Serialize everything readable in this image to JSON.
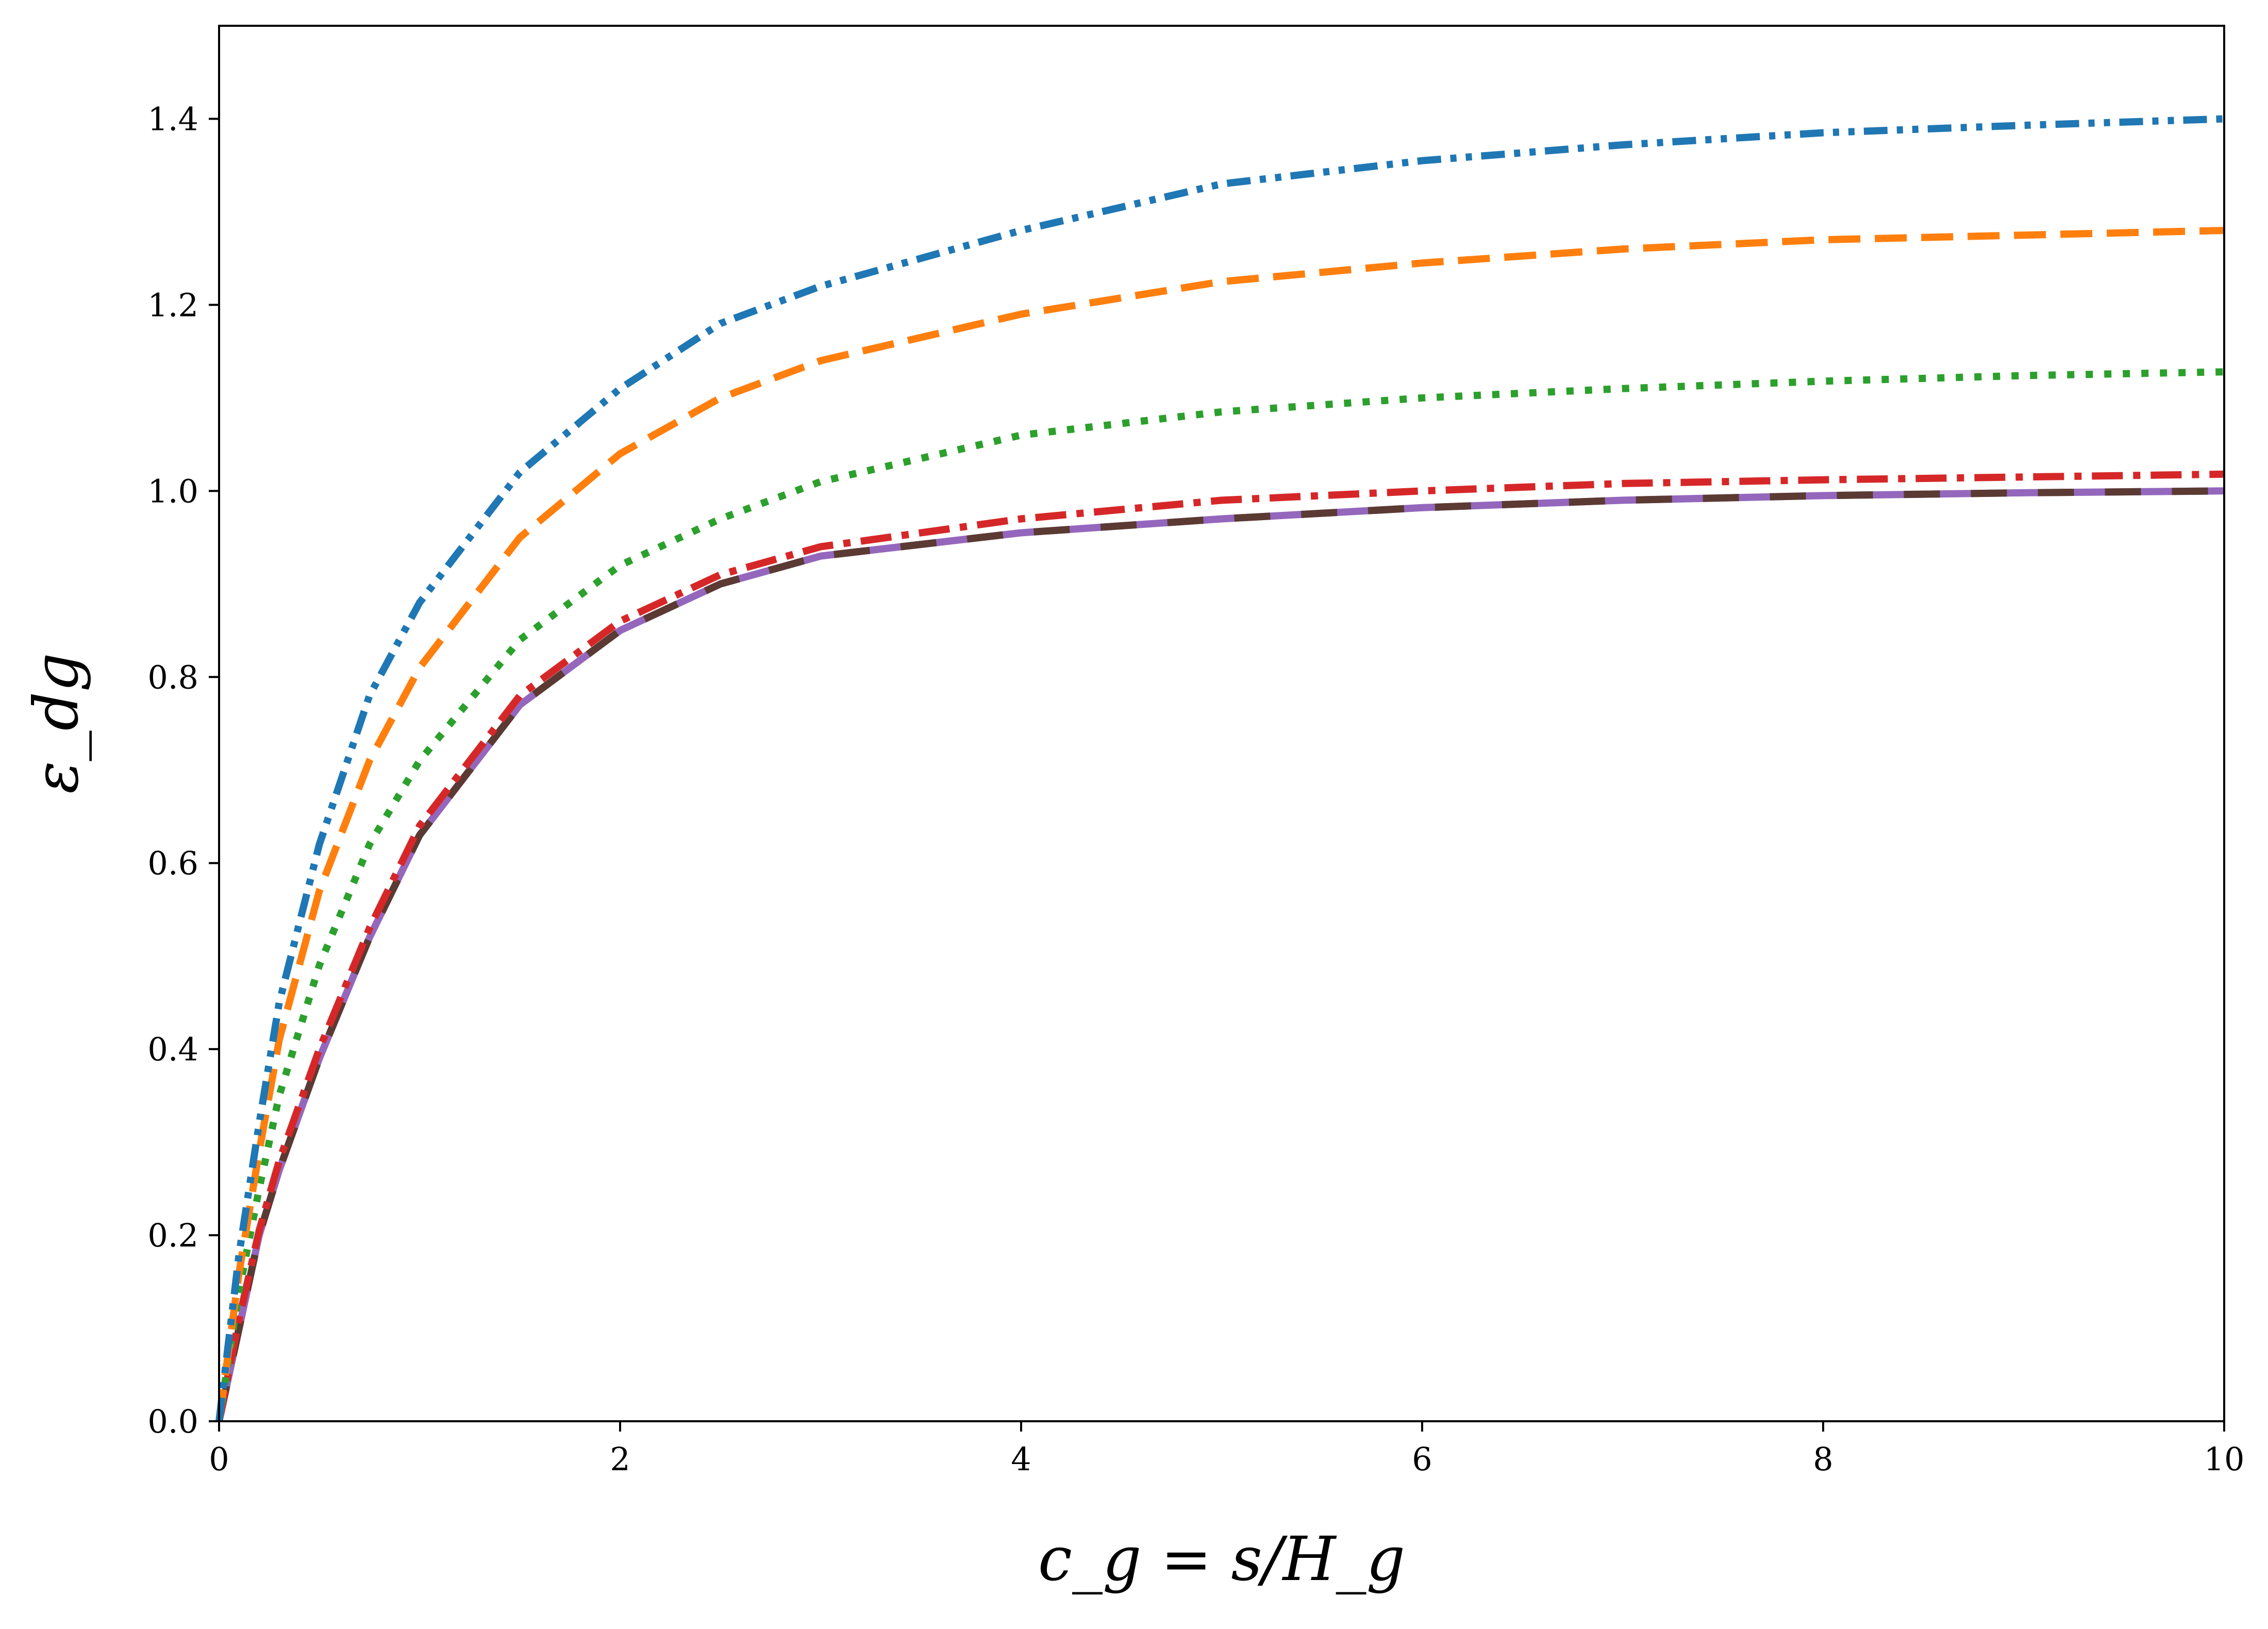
{
  "chart_data": {
    "type": "line",
    "title": "",
    "xlabel": "c_g = s/H_g",
    "ylabel": "ε_dg",
    "xlim": [
      0,
      10
    ],
    "ylim": [
      0,
      1.5
    ],
    "xticks": [
      "0",
      "2",
      "4",
      "6",
      "8",
      "10"
    ],
    "yticks": [
      "0.0",
      "0.2",
      "0.4",
      "0.6",
      "0.8",
      "1.0",
      "1.2",
      "1.4"
    ],
    "grid": false,
    "legend": "none",
    "x": [
      0,
      0.05,
      0.1,
      0.2,
      0.3,
      0.5,
      0.75,
      1,
      1.5,
      2,
      2.5,
      3,
      4,
      5,
      6,
      7,
      8,
      9,
      10
    ],
    "series": [
      {
        "values": [
          0.0,
          0.09,
          0.18,
          0.32,
          0.45,
          0.62,
          0.78,
          0.88,
          1.02,
          1.11,
          1.18,
          1.22,
          1.28,
          1.33,
          1.355,
          1.372,
          1.385,
          1.393,
          1.4
        ],
        "color": "#1f77b4",
        "style": "dash-dot-dot"
      },
      {
        "values": [
          0.0,
          0.08,
          0.16,
          0.29,
          0.41,
          0.57,
          0.71,
          0.81,
          0.95,
          1.04,
          1.1,
          1.14,
          1.19,
          1.225,
          1.245,
          1.26,
          1.27,
          1.275,
          1.28
        ],
        "color": "#ff7f0e",
        "style": "dashed"
      },
      {
        "values": [
          0.0,
          0.07,
          0.14,
          0.25,
          0.35,
          0.49,
          0.62,
          0.71,
          0.84,
          0.92,
          0.97,
          1.01,
          1.06,
          1.085,
          1.1,
          1.11,
          1.118,
          1.124,
          1.128
        ],
        "color": "#2ca02c",
        "style": "dotted"
      },
      {
        "values": [
          0.0,
          0.055,
          0.11,
          0.205,
          0.28,
          0.4,
          0.53,
          0.64,
          0.78,
          0.86,
          0.91,
          0.94,
          0.97,
          0.99,
          1.0,
          1.008,
          1.012,
          1.015,
          1.018
        ],
        "color": "#d62728",
        "style": "dash-dot"
      },
      {
        "values": [
          0.0,
          0.05,
          0.1,
          0.2,
          0.27,
          0.39,
          0.52,
          0.63,
          0.77,
          0.85,
          0.9,
          0.93,
          0.955,
          0.97,
          0.982,
          0.99,
          0.995,
          0.998,
          1.0
        ],
        "color": "#9467bd",
        "style": "solid"
      },
      {
        "values": [
          0.0,
          0.05,
          0.1,
          0.2,
          0.27,
          0.39,
          0.52,
          0.63,
          0.77,
          0.85,
          0.9,
          0.93,
          0.955,
          0.97,
          0.982,
          0.99,
          0.995,
          0.998,
          1.0
        ],
        "color": "#5b3a33",
        "style": "long-dash"
      }
    ]
  }
}
